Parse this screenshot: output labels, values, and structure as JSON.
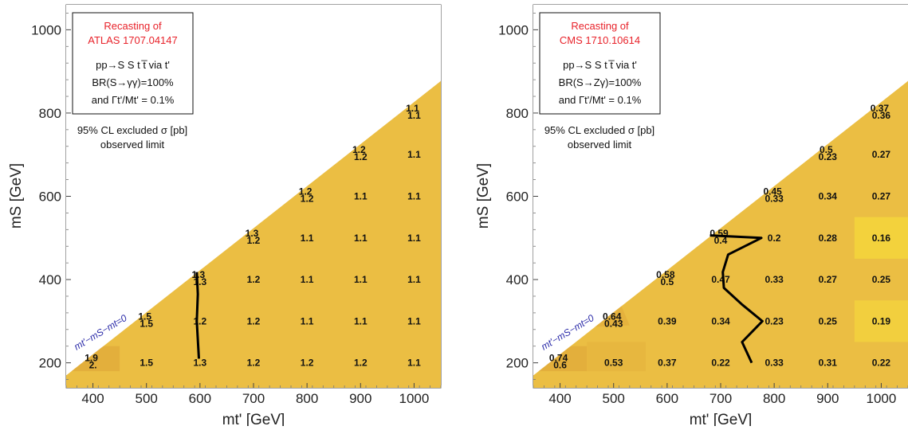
{
  "chart_data": [
    {
      "type": "heatmap",
      "title": "Recasting of",
      "subtitle": "ATLAS 1707.04147",
      "process": "pp→S S t t̅ via t'",
      "branching": "BR(S→γγ)=100%",
      "width_ratio": "and Γt'/Mt' = 0.1%",
      "note_line1": "95% CL excluded σ [pb]",
      "note_line2": "observed limit",
      "diagonal_label": "mt'−mS−mt=0",
      "xlabel": "mt' [GeV]",
      "ylabel": "mS [GeV]",
      "xlim": [
        350,
        1050
      ],
      "ylim": [
        140,
        1060
      ],
      "xticks": [
        400,
        500,
        600,
        700,
        800,
        900,
        1000
      ],
      "yticks": [
        200,
        400,
        600,
        800,
        1000
      ],
      "grid": false,
      "fill_color": "#ebbe43",
      "labels": [
        {
          "x": 400,
          "y": 200,
          "lines": [
            "1.9",
            "2."
          ]
        },
        {
          "x": 500,
          "y": 200,
          "lines": [
            "1.5"
          ]
        },
        {
          "x": 600,
          "y": 200,
          "lines": [
            "1.3"
          ]
        },
        {
          "x": 700,
          "y": 200,
          "lines": [
            "1.2"
          ]
        },
        {
          "x": 800,
          "y": 200,
          "lines": [
            "1.2"
          ]
        },
        {
          "x": 900,
          "y": 200,
          "lines": [
            "1.2"
          ]
        },
        {
          "x": 1000,
          "y": 200,
          "lines": [
            "1.1"
          ]
        },
        {
          "x": 500,
          "y": 300,
          "lines": [
            "1.5",
            "1.5"
          ]
        },
        {
          "x": 600,
          "y": 300,
          "lines": [
            "1.2"
          ]
        },
        {
          "x": 700,
          "y": 300,
          "lines": [
            "1.2"
          ]
        },
        {
          "x": 800,
          "y": 300,
          "lines": [
            "1.1"
          ]
        },
        {
          "x": 900,
          "y": 300,
          "lines": [
            "1.1"
          ]
        },
        {
          "x": 1000,
          "y": 300,
          "lines": [
            "1.1"
          ]
        },
        {
          "x": 600,
          "y": 400,
          "lines": [
            "1.3",
            "1.3"
          ]
        },
        {
          "x": 700,
          "y": 400,
          "lines": [
            "1.2"
          ]
        },
        {
          "x": 800,
          "y": 400,
          "lines": [
            "1.1"
          ]
        },
        {
          "x": 900,
          "y": 400,
          "lines": [
            "1.1"
          ]
        },
        {
          "x": 1000,
          "y": 400,
          "lines": [
            "1.1"
          ]
        },
        {
          "x": 700,
          "y": 500,
          "lines": [
            "1.3",
            "1.2"
          ]
        },
        {
          "x": 800,
          "y": 500,
          "lines": [
            "1.1"
          ]
        },
        {
          "x": 900,
          "y": 500,
          "lines": [
            "1.1"
          ]
        },
        {
          "x": 1000,
          "y": 500,
          "lines": [
            "1.1"
          ]
        },
        {
          "x": 800,
          "y": 600,
          "lines": [
            "1.2",
            "1.2"
          ]
        },
        {
          "x": 900,
          "y": 600,
          "lines": [
            "1.1"
          ]
        },
        {
          "x": 1000,
          "y": 600,
          "lines": [
            "1.1"
          ]
        },
        {
          "x": 900,
          "y": 700,
          "lines": [
            "1.2",
            "1.2"
          ]
        },
        {
          "x": 1000,
          "y": 700,
          "lines": [
            "1.1"
          ]
        },
        {
          "x": 1000,
          "y": 800,
          "lines": [
            "1.1",
            "1.1"
          ]
        }
      ],
      "contour": [
        [
          598,
          210
        ],
        [
          594,
          300
        ],
        [
          596,
          365
        ],
        [
          594,
          418
        ]
      ],
      "patches": [
        {
          "x": [
            360,
            450,
            450,
            360
          ],
          "y": [
            180,
            180,
            240,
            240
          ],
          "color": "#e3af3c"
        }
      ]
    },
    {
      "type": "heatmap",
      "title": "Recasting of",
      "subtitle": "CMS 1710.10614",
      "process": "pp→S S t t̅ via t'",
      "branching": "BR(S→Zγ)=100%",
      "width_ratio": "and Γt'/Mt' = 0.1%",
      "note_line1": "95% CL excluded σ [pb]",
      "note_line2": "observed limit",
      "diagonal_label": "mt'−mS−mt=0",
      "xlabel": "mt' [GeV]",
      "ylabel": "mS [GeV]",
      "xlim": [
        350,
        1050
      ],
      "ylim": [
        140,
        1060
      ],
      "xticks": [
        400,
        500,
        600,
        700,
        800,
        900,
        1000
      ],
      "yticks": [
        200,
        400,
        600,
        800,
        1000
      ],
      "grid": false,
      "fill_color": "#ebbe43",
      "labels": [
        {
          "x": 400,
          "y": 200,
          "lines": [
            "0.74",
            "0.6"
          ]
        },
        {
          "x": 500,
          "y": 200,
          "lines": [
            "0.53"
          ]
        },
        {
          "x": 600,
          "y": 200,
          "lines": [
            "0.37"
          ]
        },
        {
          "x": 700,
          "y": 200,
          "lines": [
            "0.22"
          ]
        },
        {
          "x": 800,
          "y": 200,
          "lines": [
            "0.33"
          ]
        },
        {
          "x": 900,
          "y": 200,
          "lines": [
            "0.31"
          ]
        },
        {
          "x": 1000,
          "y": 200,
          "lines": [
            "0.22"
          ]
        },
        {
          "x": 500,
          "y": 300,
          "lines": [
            "0.64",
            "0.43"
          ]
        },
        {
          "x": 600,
          "y": 300,
          "lines": [
            "0.39"
          ]
        },
        {
          "x": 700,
          "y": 300,
          "lines": [
            "0.34"
          ]
        },
        {
          "x": 800,
          "y": 300,
          "lines": [
            "0.23"
          ]
        },
        {
          "x": 900,
          "y": 300,
          "lines": [
            "0.25"
          ]
        },
        {
          "x": 1000,
          "y": 300,
          "lines": [
            "0.19"
          ]
        },
        {
          "x": 600,
          "y": 400,
          "lines": [
            "0.58",
            "0.5"
          ]
        },
        {
          "x": 700,
          "y": 400,
          "lines": [
            "0.47"
          ]
        },
        {
          "x": 800,
          "y": 400,
          "lines": [
            "0.33"
          ]
        },
        {
          "x": 900,
          "y": 400,
          "lines": [
            "0.27"
          ]
        },
        {
          "x": 1000,
          "y": 400,
          "lines": [
            "0.25"
          ]
        },
        {
          "x": 700,
          "y": 500,
          "lines": [
            "0.59",
            "0.4"
          ]
        },
        {
          "x": 800,
          "y": 500,
          "lines": [
            "0.2"
          ]
        },
        {
          "x": 900,
          "y": 500,
          "lines": [
            "0.28"
          ]
        },
        {
          "x": 1000,
          "y": 500,
          "lines": [
            "0.16"
          ]
        },
        {
          "x": 800,
          "y": 600,
          "lines": [
            "0.45",
            "0.33"
          ]
        },
        {
          "x": 900,
          "y": 600,
          "lines": [
            "0.34"
          ]
        },
        {
          "x": 1000,
          "y": 600,
          "lines": [
            "0.27"
          ]
        },
        {
          "x": 900,
          "y": 700,
          "lines": [
            "0.5",
            "0.23"
          ]
        },
        {
          "x": 1000,
          "y": 700,
          "lines": [
            "0.27"
          ]
        },
        {
          "x": 1000,
          "y": 800,
          "lines": [
            "0.37",
            "0.36"
          ]
        }
      ],
      "contour": [
        [
          758,
          200
        ],
        [
          740,
          250
        ],
        [
          778,
          300
        ],
        [
          740,
          340
        ],
        [
          706,
          380
        ],
        [
          704,
          418
        ],
        [
          714,
          460
        ],
        [
          776,
          500
        ],
        [
          680,
          506
        ]
      ],
      "patches": [
        {
          "x": [
            950,
            1050,
            1050,
            950
          ],
          "y": [
            450,
            450,
            550,
            550
          ],
          "color": "#f3d23c"
        },
        {
          "x": [
            950,
            1050,
            1050,
            950
          ],
          "y": [
            250,
            250,
            350,
            350
          ],
          "color": "#f2cf3e"
        },
        {
          "x": [
            360,
            450,
            450,
            360
          ],
          "y": [
            180,
            180,
            240,
            240
          ],
          "color": "#e3af3c"
        },
        {
          "x": [
            450,
            560,
            560,
            450
          ],
          "y": [
            180,
            180,
            250,
            250
          ],
          "color": "#e7b73f"
        },
        {
          "x": [
            440,
            530,
            510,
            460
          ],
          "y": [
            285,
            290,
            350,
            345
          ],
          "color": "#e5b23d"
        }
      ]
    }
  ]
}
